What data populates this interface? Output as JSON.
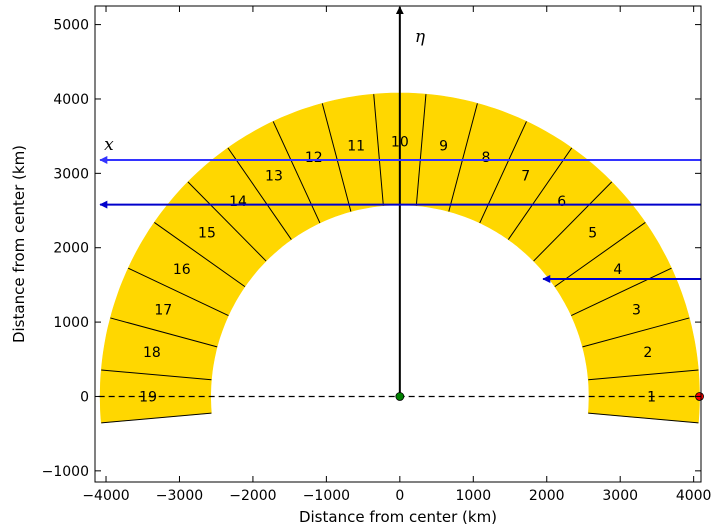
{
  "chart_data": {
    "type": "diagram",
    "xlabel": "Distance from center (km)",
    "ylabel": "Distance from center (km)",
    "xlim": [
      -4150,
      4100
    ],
    "ylim": [
      -1150,
      5250
    ],
    "xticks": [
      -4000,
      -3000,
      -2000,
      -1000,
      0,
      1000,
      2000,
      3000,
      4000
    ],
    "xtick_labels": [
      "−4000",
      "−3000",
      "−2000",
      "−1000",
      "0",
      "1000",
      "2000",
      "3000",
      "4000"
    ],
    "yticks": [
      -1000,
      0,
      1000,
      2000,
      3000,
      4000,
      5000
    ],
    "ytick_labels": [
      "−1000",
      "0",
      "1000",
      "2000",
      "3000",
      "4000",
      "5000"
    ],
    "grid": false,
    "annulus": {
      "inner_radius": 2575,
      "outer_radius": 4080,
      "fill_color": "#ffd700",
      "segments": [
        {
          "label": "1",
          "start_deg": -5,
          "end_deg": 5
        },
        {
          "label": "2",
          "start_deg": 5,
          "end_deg": 15
        },
        {
          "label": "3",
          "start_deg": 15,
          "end_deg": 25
        },
        {
          "label": "4",
          "start_deg": 25,
          "end_deg": 35
        },
        {
          "label": "5",
          "start_deg": 35,
          "end_deg": 45
        },
        {
          "label": "6",
          "start_deg": 45,
          "end_deg": 55
        },
        {
          "label": "7",
          "start_deg": 55,
          "end_deg": 65
        },
        {
          "label": "8",
          "start_deg": 65,
          "end_deg": 75
        },
        {
          "label": "9",
          "start_deg": 75,
          "end_deg": 85
        },
        {
          "label": "10",
          "start_deg": 85,
          "end_deg": 95
        },
        {
          "label": "11",
          "start_deg": 95,
          "end_deg": 105
        },
        {
          "label": "12",
          "start_deg": 105,
          "end_deg": 115
        },
        {
          "label": "13",
          "start_deg": 115,
          "end_deg": 125
        },
        {
          "label": "14",
          "start_deg": 125,
          "end_deg": 135
        },
        {
          "label": "15",
          "start_deg": 135,
          "end_deg": 145
        },
        {
          "label": "16",
          "start_deg": 145,
          "end_deg": 155
        },
        {
          "label": "17",
          "start_deg": 155,
          "end_deg": 165
        },
        {
          "label": "18",
          "start_deg": 165,
          "end_deg": 175
        },
        {
          "label": "19",
          "start_deg": 175,
          "end_deg": 185
        }
      ]
    },
    "dashed_line": {
      "y": 0,
      "x_from": -4100,
      "x_to": 4100,
      "color": "#000000"
    },
    "eta_axis": {
      "x": 0,
      "y_from": 0,
      "y_to": 5250,
      "label": "η",
      "color": "#000000"
    },
    "rays": [
      {
        "y": 3180,
        "x_from": 4100,
        "x_to": -4080,
        "label": "x",
        "color": "#3333ff"
      },
      {
        "y": 2580,
        "x_from": 4100,
        "x_to": -4080,
        "label": "",
        "color": "#0000cc"
      },
      {
        "y": 1580,
        "x_from": 4100,
        "x_to": 1950,
        "label": "",
        "color": "#0000cc"
      }
    ],
    "points": [
      {
        "x": 0,
        "y": 0,
        "color": "#008000"
      },
      {
        "x": 4080,
        "y": 0,
        "color": "#ff0000"
      }
    ]
  }
}
